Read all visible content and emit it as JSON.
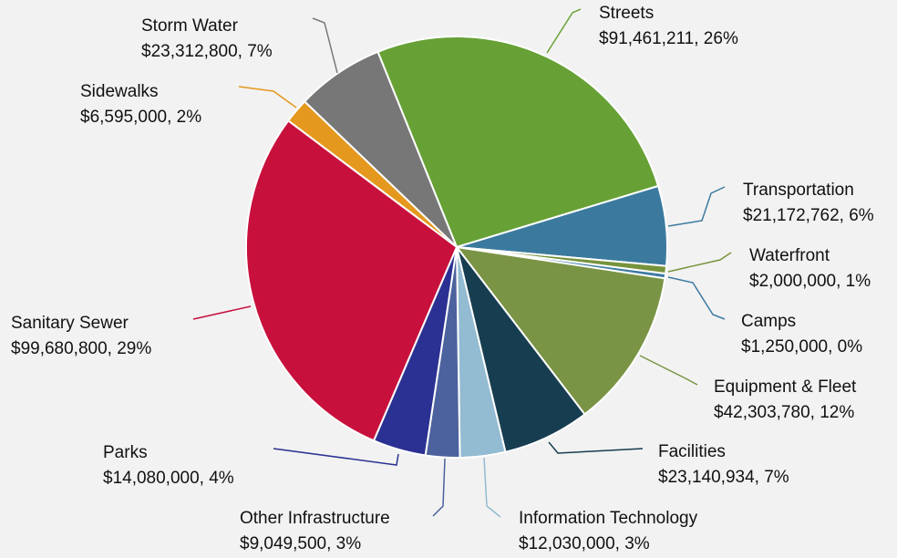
{
  "chart_data": {
    "type": "pie",
    "categories": [
      "Streets",
      "Transportation",
      "Waterfront",
      "Camps",
      "Equipment & Fleet",
      "Facilities",
      "Information Technology",
      "Other Infrastructure",
      "Parks",
      "Sanitary Sewer",
      "Sidewalks",
      "Storm Water"
    ],
    "values": [
      91461211,
      21172762,
      2000000,
      1250000,
      42303780,
      23140934,
      12030000,
      9049500,
      14080000,
      99680800,
      6595000,
      23312800
    ],
    "value_labels": [
      "$91,461,211, 26%",
      "$21,172,762, 6%",
      "$2,000,000, 1%",
      "$1,250,000, 0%",
      "$42,303,780, 12%",
      "$23,140,934, 7%",
      "$12,030,000, 3%",
      "$9,049,500, 3%",
      "$14,080,000, 4%",
      "$99,680,800, 29%",
      "$6,595,000, 2%",
      "$23,312,800, 7%"
    ],
    "colors": [
      "#67a136",
      "#3b7a9e",
      "#77933c",
      "#3d7ba3",
      "#7a9445",
      "#173d50",
      "#93bbd1",
      "#4c629e",
      "#2b3192",
      "#c8103c",
      "#e4981e",
      "#777777"
    ]
  }
}
